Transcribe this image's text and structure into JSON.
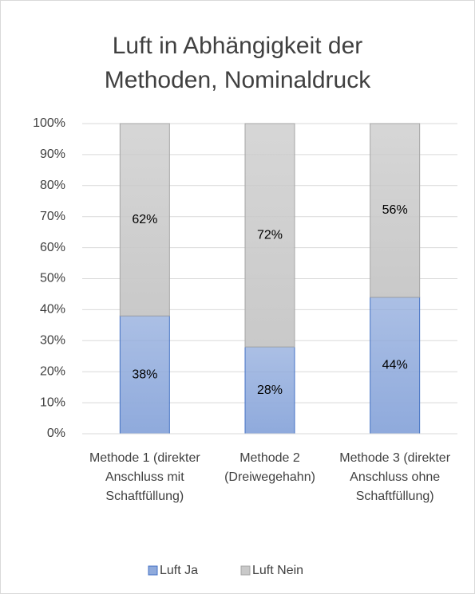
{
  "chart_data": {
    "type": "stacked_bar",
    "title": "Luft in Abhängigkeit der Methoden, Nominaldruck",
    "categories": [
      "Methode 1 (direkter Anschluss mit Schaftfüllung)",
      "Methode 2 (Dreiwegehahn)",
      "Methode 3 (direkter Anschluss ohne Schaftfüllung)"
    ],
    "series": [
      {
        "name": "Luft Ja",
        "color": "#8faadc",
        "values": [
          38,
          28,
          44
        ],
        "value_labels": [
          "38%",
          "28%",
          "44%"
        ]
      },
      {
        "name": "Luft Nein",
        "color": "#c9c9c9",
        "values": [
          62,
          72,
          56
        ],
        "value_labels": [
          "62%",
          "72%",
          "56%"
        ]
      }
    ],
    "ylim": [
      0,
      100
    ],
    "yticks": [
      {
        "value": 0,
        "label": "0%"
      },
      {
        "value": 10,
        "label": "10%"
      },
      {
        "value": 20,
        "label": "20%"
      },
      {
        "value": 30,
        "label": "30%"
      },
      {
        "value": 40,
        "label": "40%"
      },
      {
        "value": 50,
        "label": "50%"
      },
      {
        "value": 60,
        "label": "60%"
      },
      {
        "value": 70,
        "label": "70%"
      },
      {
        "value": 80,
        "label": "80%"
      },
      {
        "value": 90,
        "label": "90%"
      },
      {
        "value": 100,
        "label": "100%"
      }
    ],
    "grid": true,
    "legend": "bottom"
  }
}
